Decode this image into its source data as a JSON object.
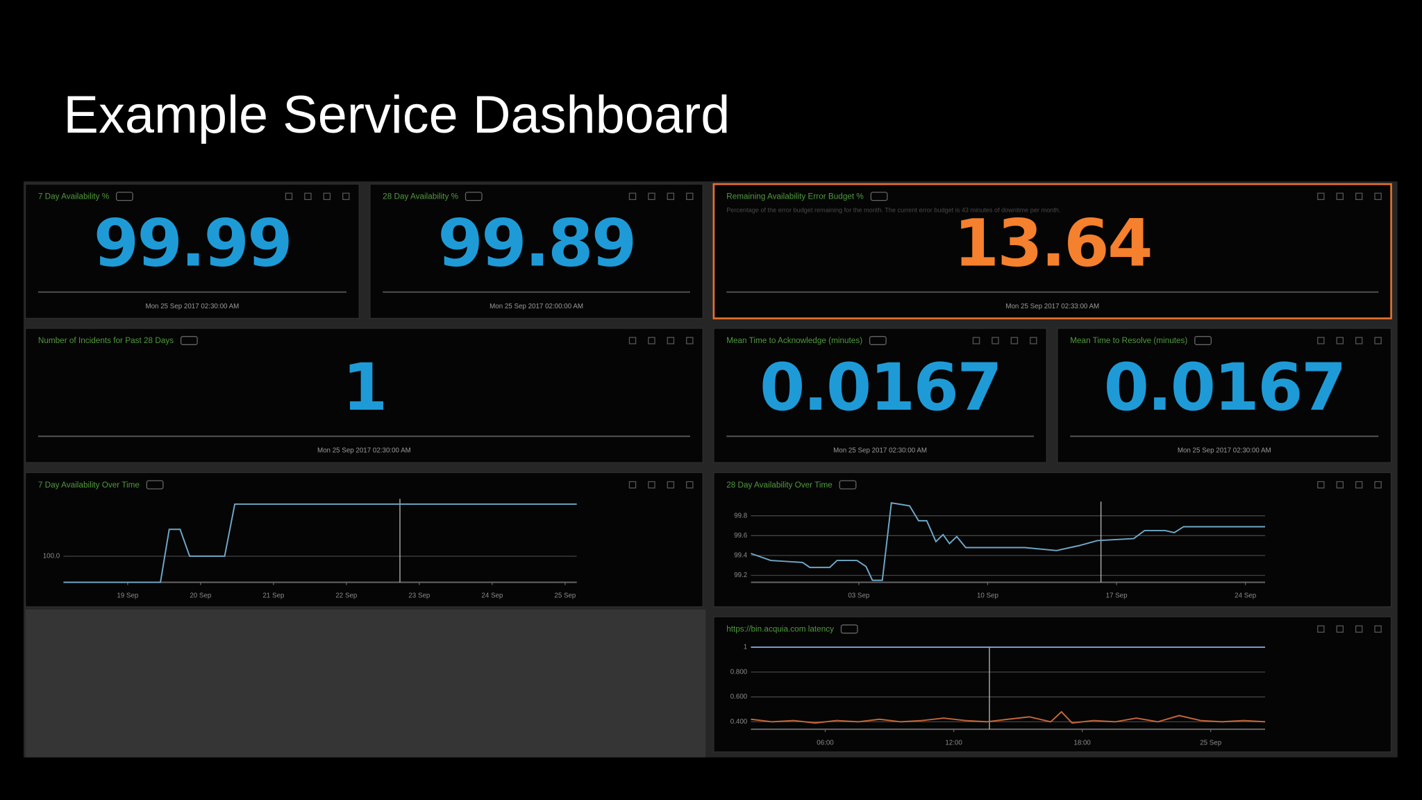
{
  "title": "Example Service Dashboard",
  "stat_panels": [
    {
      "title": "7 Day Availability %",
      "value": 99.99,
      "color": "#1e9bd7",
      "timestamp": "Mon 25 Sep 2017 02:30:00 AM"
    },
    {
      "title": "28 Day Availability %",
      "value": 99.89,
      "color": "#1e9bd7",
      "timestamp": "Mon 25 Sep 2017 02:00:00 AM"
    },
    {
      "title": "Remaining Availability Error Budget %",
      "subtitle": "Percentage of the error budget remaining for the month. The current error budget is 43 minutes of downtime per month.",
      "value": 13.64,
      "color": "#f5802d",
      "timestamp": "Mon 25 Sep 2017 02:33:00 AM"
    },
    {
      "title": "Number of Incidents for Past 28 Days",
      "value": 1,
      "color": "#1e9bd7",
      "timestamp": "Mon 25 Sep 2017 02:30:00 AM"
    },
    {
      "title": "Mean Time to Acknowledge (minutes)",
      "value": 0.0167,
      "color": "#1e9bd7",
      "timestamp": "Mon 25 Sep 2017 02:30:00 AM"
    },
    {
      "title": "Mean Time to Resolve (minutes)",
      "value": 0.0167,
      "color": "#1e9bd7",
      "timestamp": "Mon 25 Sep 2017 02:30:00 AM"
    }
  ],
  "chart_data": [
    {
      "type": "line",
      "title": "7 Day Availability Over Time",
      "xlim": [
        18.12,
        25.16
      ],
      "ylim": [
        99.99,
        100.022
      ],
      "xticks": [
        {
          "value": 19,
          "label": "19 Sep"
        },
        {
          "value": 20,
          "label": "20 Sep"
        },
        {
          "value": 21,
          "label": "21 Sep"
        },
        {
          "value": 22,
          "label": "22 Sep"
        },
        {
          "value": 23,
          "label": "23 Sep"
        },
        {
          "value": 24,
          "label": "24 Sep"
        },
        {
          "value": 25,
          "label": "25 Sep"
        }
      ],
      "yticks": [
        {
          "value": 100,
          "label": "100.0"
        }
      ],
      "grid": true,
      "series": [
        {
          "color": "#6fa8c8",
          "x": [
            18.12,
            19.45,
            19.57,
            19.72,
            19.85,
            20.33,
            20.47,
            25.16
          ],
          "values": [
            99.99,
            99.99,
            100.0103,
            100.0103,
            100.0,
            100.0,
            100.02,
            100.02
          ]
        }
      ]
    },
    {
      "type": "line",
      "title": "28 Day Availability Over Time",
      "xlim": [
        -2.86,
        25.07
      ],
      "ylim": [
        99.13,
        99.97
      ],
      "xticks": [
        {
          "value": 3,
          "label": "03 Sep"
        },
        {
          "value": 10,
          "label": "10 Sep"
        },
        {
          "value": 17,
          "label": "17 Sep"
        },
        {
          "value": 24,
          "label": "24 Sep"
        }
      ],
      "yticks": [
        99.8,
        99.6,
        99.4,
        99.2
      ],
      "grid": true,
      "series": [
        {
          "color": "#6fa8c8",
          "x": [
            -2.86,
            -1.78,
            -0.05,
            0.34,
            1.42,
            1.82,
            2.9,
            3.39,
            3.74,
            4.28,
            4.77,
            5.76,
            6.25,
            6.69,
            7.19,
            7.58,
            7.93,
            8.32,
            8.81,
            12.01,
            13.74,
            14.97,
            15.96,
            17.93,
            18.52,
            19.65,
            20.14,
            20.64,
            25.07
          ],
          "values": [
            99.42,
            99.35,
            99.33,
            99.28,
            99.28,
            99.35,
            99.35,
            99.29,
            99.15,
            99.15,
            99.93,
            99.9,
            99.75,
            99.75,
            99.54,
            99.61,
            99.52,
            99.59,
            99.48,
            99.48,
            99.45,
            99.5,
            99.55,
            99.57,
            99.65,
            99.65,
            99.63,
            99.69,
            99.69
          ]
        }
      ]
    },
    {
      "type": "line",
      "title": "https://bin.acquia.com latency",
      "xlim": [
        2.53,
        26.54
      ],
      "ylim": [
        0.34,
        1.04
      ],
      "xticks": [
        {
          "value": 6,
          "label": "06:00"
        },
        {
          "value": 12,
          "label": "12:00"
        },
        {
          "value": 18,
          "label": "18:00"
        },
        {
          "value": 24,
          "label": "25 Sep"
        }
      ],
      "yticks": [
        1,
        {
          "value": 0.8,
          "label": "0.800"
        },
        {
          "value": 0.6,
          "label": "0.600"
        },
        {
          "value": 0.4,
          "label": "0.400"
        }
      ],
      "grid": true,
      "series": [
        {
          "color": "#7fa6d6",
          "x": [
            2.53,
            26.54
          ],
          "values": [
            1,
            1
          ]
        },
        {
          "color": "#c8663a",
          "x": [
            2.53,
            3.53,
            4.53,
            5.53,
            6.53,
            7.53,
            8.53,
            9.53,
            10.53,
            11.53,
            12.53,
            13.53,
            14.53,
            15.53,
            16.53,
            17.03,
            17.53,
            18.53,
            19.53,
            20.53,
            21.53,
            22.53,
            23.53,
            24.53,
            25.53,
            26.54
          ],
          "values": [
            0.42,
            0.4,
            0.41,
            0.39,
            0.41,
            0.4,
            0.42,
            0.4,
            0.41,
            0.43,
            0.41,
            0.4,
            0.42,
            0.44,
            0.4,
            0.48,
            0.39,
            0.41,
            0.4,
            0.43,
            0.4,
            0.45,
            0.41,
            0.4,
            0.41,
            0.4
          ]
        }
      ]
    }
  ]
}
